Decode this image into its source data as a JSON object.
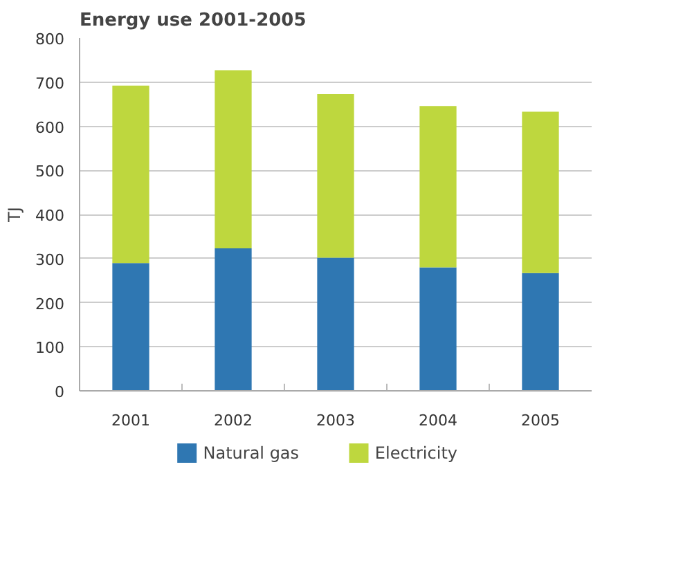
{
  "chart_data": {
    "type": "bar",
    "title": "Energy use 2001-2005",
    "ylabel": "TJ",
    "categories": [
      "2001",
      "2002",
      "2003",
      "2004",
      "2005"
    ],
    "stacked": true,
    "series": [
      {
        "name": "Natural gas",
        "color": "#2f77b2",
        "values": [
          290,
          323,
          302,
          280,
          267
        ]
      },
      {
        "name": "Electricity",
        "color": "#bed73e",
        "values": [
          402,
          404,
          371,
          366,
          366
        ]
      }
    ],
    "ylim": [
      0,
      800
    ],
    "yticks": [
      0,
      100,
      200,
      300,
      400,
      500,
      600,
      700,
      800
    ],
    "grid": "y",
    "legend": "bottom"
  }
}
